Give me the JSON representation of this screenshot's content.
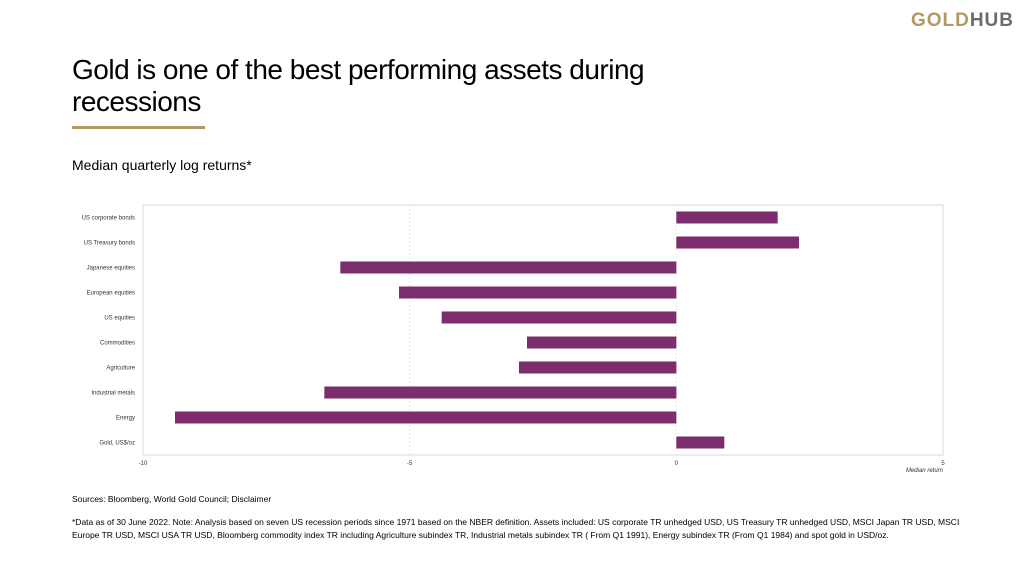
{
  "header": {
    "logo_gold": "GOLD",
    "logo_hub": "HUB",
    "title": "Gold is one of the best performing assets during recessions",
    "subtitle": "Median quarterly log returns*"
  },
  "chart_data": {
    "type": "bar",
    "orientation": "horizontal",
    "categories": [
      "US corporate bonds",
      "US Treasury bonds",
      "Japanese equities",
      "European equities",
      "US equities",
      "Commodities",
      "Agriculture",
      "Industrial metals",
      "Energy",
      "Gold, US$/oz"
    ],
    "values": [
      1.9,
      2.3,
      -6.3,
      -5.2,
      -4.4,
      -2.8,
      -2.95,
      -6.6,
      -9.4,
      0.9
    ],
    "xlabel": "Median return",
    "xlim": [
      -10,
      5
    ],
    "xticks": [
      "-10",
      "-5",
      "0",
      "5"
    ],
    "grid": "vertical",
    "bar_color": "#7b2d6d"
  },
  "footer": {
    "sources": "Sources: Bloomberg, World Gold Council; Disclaimer",
    "footnote": "*Data as of 30 June 2022. Note: Analysis based on seven US recession periods since 1971 based on the NBER definition. Assets included: US corporate TR unhedged USD, US Treasury TR unhedged USD, MSCI Japan TR USD, MSCI Europe TR USD, MSCI USA TR USD, Bloomberg commodity index TR including Agriculture subindex TR, Industrial metals subindex TR ( From Q1 1991), Energy subindex TR (From Q1 1984) and spot gold in USD/oz."
  }
}
